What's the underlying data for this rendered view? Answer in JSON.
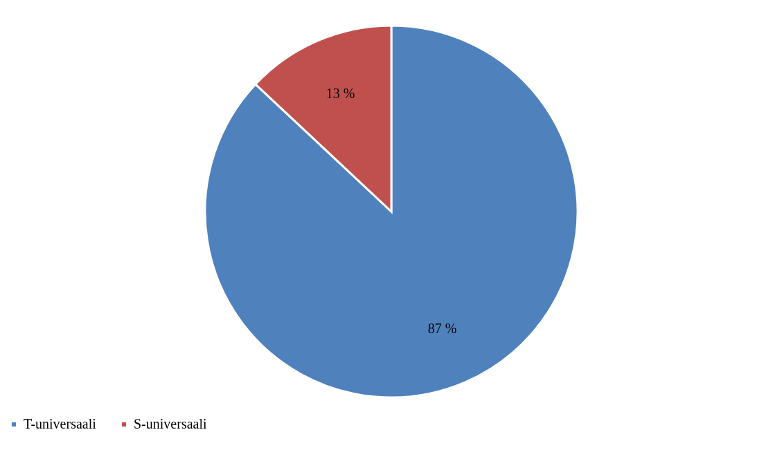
{
  "chart_data": {
    "type": "pie",
    "categories": [
      "T-universaali",
      "S-universaali"
    ],
    "values": [
      87,
      13
    ],
    "colors": [
      "#4f81bd",
      "#c0504d"
    ],
    "value_labels": [
      "87 %",
      "13 %"
    ],
    "legend": "bottom"
  }
}
